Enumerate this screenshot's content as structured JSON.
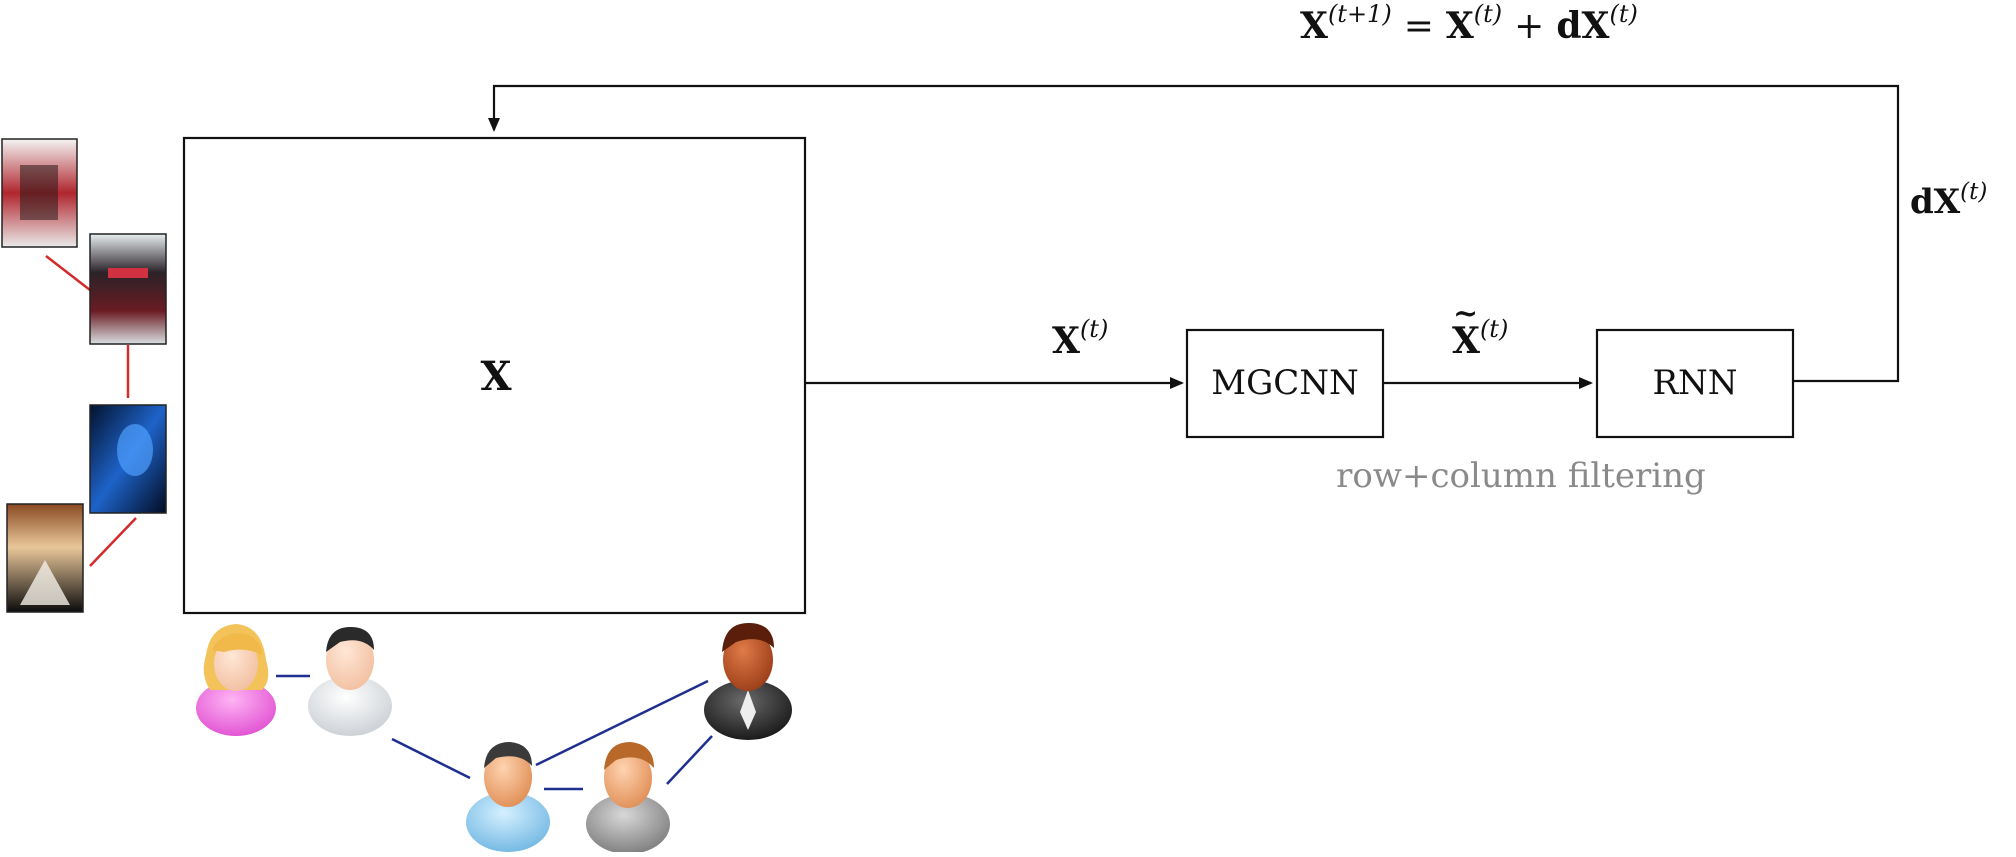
{
  "update_rule": {
    "lhs": "X",
    "lhs_sup": "(t+1)",
    "eq": "=",
    "term1": "X",
    "term1_sup": "(t)",
    "plus": "+",
    "term2": "dX",
    "term2_sup": "(t)"
  },
  "matrix_label": "X",
  "edge_input": {
    "base": "X",
    "sup": "(t)"
  },
  "edge_mid": {
    "base": "X",
    "tilde": "~",
    "sup": "(t)"
  },
  "edge_feedback": {
    "base": "dX",
    "sup": "(t)"
  },
  "blocks": {
    "mgcnn": "MGCNN",
    "rnn": "RNN"
  },
  "caption": "row+column filtering",
  "colors": {
    "stroke": "#111111",
    "caption": "#8a8a8a",
    "movie_graph_edge": "#d42a2a",
    "user_graph_edge": "#1f2f8f"
  }
}
